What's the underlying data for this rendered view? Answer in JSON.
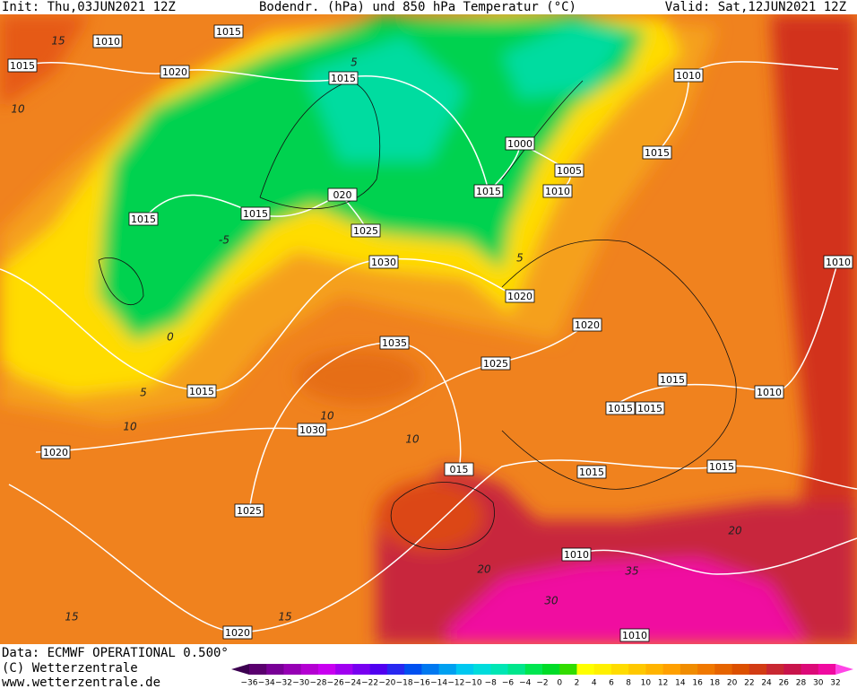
{
  "header": {
    "init": "Init: Thu,03JUN2021 12Z",
    "title": "Bodendr. (hPa) und 850 hPa Temperatur (°C)",
    "valid": "Valid: Sat,12JUN2021 12Z"
  },
  "isobar_labels": [
    "1015",
    "1010",
    "1015",
    "1020",
    "1015",
    "1000",
    "1005",
    "1015",
    "1010",
    "1015",
    "1010",
    "1015",
    "1015",
    "020",
    "1025",
    "1030",
    "1020",
    "1020",
    "1035",
    "1025",
    "1015",
    "1015",
    "1010",
    "1030",
    "1015",
    "1015",
    "1020",
    "015",
    "1015",
    "1015",
    "1025",
    "1010",
    "1020",
    "1010",
    "1010"
  ],
  "temperature_labels": [
    "15",
    "10",
    "5",
    "-5",
    "0",
    "5",
    "10",
    "10",
    "10",
    "20",
    "20",
    "30",
    "35",
    "15",
    "15",
    "5"
  ],
  "footer": {
    "data": "Data: ECMWF OPERATIONAL 0.500°",
    "copyright": "(C) Wetterzentrale",
    "url": "www.wetterzentrale.de"
  },
  "colorbar": {
    "labels": [
      "−36",
      "−34",
      "−32",
      "−30",
      "−28",
      "−26",
      "−24",
      "−22",
      "−20",
      "−18",
      "−16",
      "−14",
      "−12",
      "−10",
      "−8",
      "−6",
      "−4",
      "−2",
      "0",
      "2",
      "4",
      "6",
      "8",
      "10",
      "12",
      "14",
      "16",
      "18",
      "20",
      "22",
      "24",
      "26",
      "28",
      "30",
      "32"
    ],
    "colors": [
      "#3c0050",
      "#5a006e",
      "#780096",
      "#9600b4",
      "#b400d2",
      "#c800f0",
      "#a000f0",
      "#7800f0",
      "#5000f0",
      "#2828f0",
      "#0050f0",
      "#0078f0",
      "#00a0f0",
      "#00c8f0",
      "#00dcdc",
      "#00e6b4",
      "#00e68c",
      "#00e650",
      "#00dc28",
      "#32dc00",
      "#ffff00",
      "#fff000",
      "#ffdc00",
      "#ffc800",
      "#ffb400",
      "#ffa000",
      "#f08c00",
      "#f07800",
      "#e66400",
      "#dc5000",
      "#d23c14",
      "#c82832",
      "#c8144b",
      "#dc0a78",
      "#f00aa0",
      "#ff46e6"
    ]
  }
}
